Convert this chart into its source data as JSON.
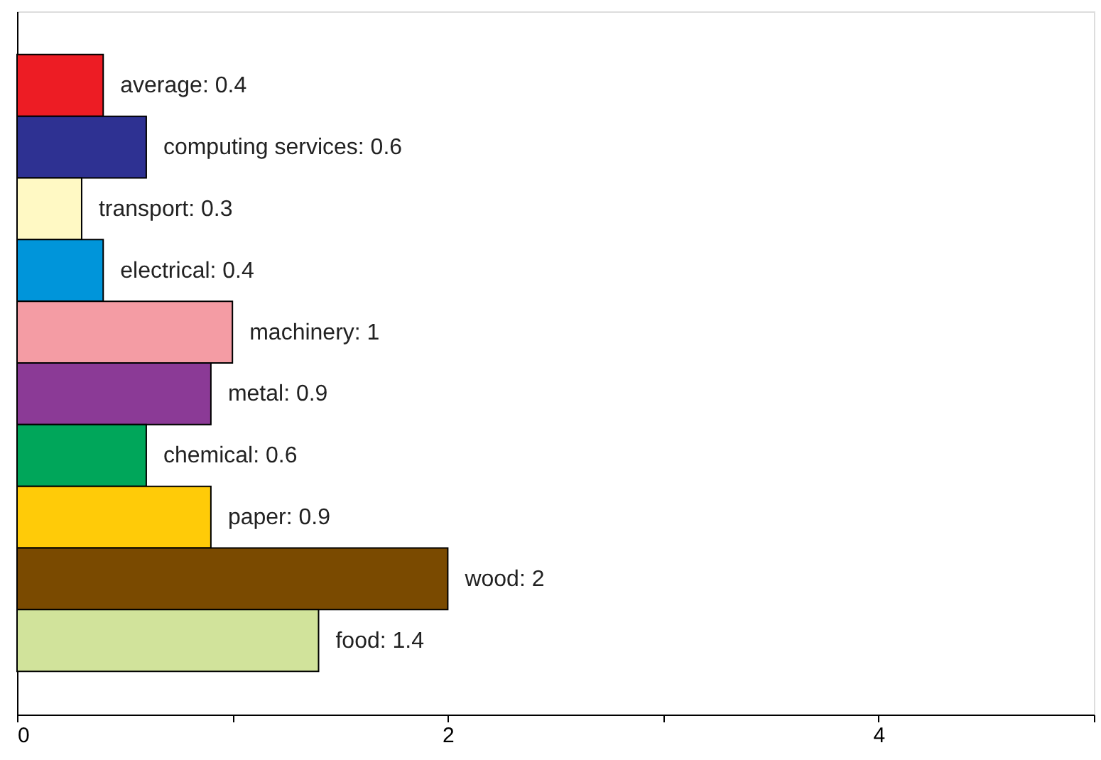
{
  "chart_data": {
    "type": "bar",
    "orientation": "horizontal",
    "categories": [
      null,
      null,
      null,
      null,
      null,
      null,
      null,
      null,
      null,
      null
    ],
    "values": [
      0.4,
      0.6,
      0.3,
      0.4,
      1,
      0.9,
      0.6,
      0.9,
      2,
      1.4
    ],
    "colors": [
      "#ed1c24",
      "#2e3192",
      "#fff9c4",
      "#0095da",
      "#f49ca4",
      "#8b3a96",
      "#00a65a",
      "#ffcb08",
      "#7a4a00",
      "#d1e39b"
    ],
    "value_labels": [
      "average: 0.4",
      "computing services: 0.6",
      "transport: 0.3",
      "electrical: 0.4",
      "machinery: 1",
      "metal: 0.9",
      "chemical: 0.6",
      "paper: 0.9",
      "wood: 2",
      "food: 1.4"
    ],
    "xlim": [
      0,
      5
    ],
    "xticks": [
      0,
      {
        "value": 1,
        "label": null
      },
      2,
      {
        "value": 3,
        "label": null
      },
      4,
      {
        "value": 5,
        "label": null
      }
    ],
    "tick_labels": "x",
    "grid": false
  }
}
